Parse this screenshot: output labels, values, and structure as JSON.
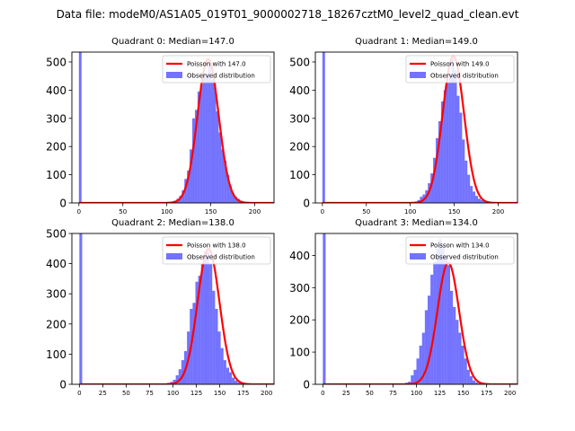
{
  "suptitle": "Data file: modeM0/AS1A05_019T01_9000002718_18267cztM0_level2_quad_clean.evt",
  "colors": {
    "observed": "#0000ff",
    "poisson": "#ff0000",
    "axes": "#000000"
  },
  "chart_data": [
    {
      "type": "bar",
      "title": "Quadrant 0: Median=147.0",
      "xlim": [
        -8,
        222
      ],
      "ylim": [
        0,
        535
      ],
      "xticks": [
        0,
        50,
        100,
        150,
        200
      ],
      "yticks": [
        0,
        100,
        200,
        300,
        400,
        500
      ],
      "bin_width": 3,
      "median": 147,
      "poisson_label": "Poisson with 147.0",
      "hist_label": "Observed distribution",
      "legend_position": "top-right",
      "bins": [
        [
          0,
          540
        ],
        [
          102,
          2
        ],
        [
          105,
          5
        ],
        [
          108,
          8
        ],
        [
          111,
          15
        ],
        [
          114,
          25
        ],
        [
          117,
          45
        ],
        [
          120,
          85
        ],
        [
          123,
          115
        ],
        [
          126,
          190
        ],
        [
          129,
          300
        ],
        [
          132,
          330
        ],
        [
          135,
          395
        ],
        [
          138,
          420
        ],
        [
          141,
          460
        ],
        [
          144,
          455
        ],
        [
          147,
          500
        ],
        [
          150,
          435
        ],
        [
          153,
          425
        ],
        [
          156,
          325
        ],
        [
          159,
          250
        ],
        [
          162,
          190
        ],
        [
          165,
          150
        ],
        [
          168,
          100
        ],
        [
          171,
          60
        ],
        [
          174,
          35
        ],
        [
          177,
          22
        ],
        [
          180,
          15
        ],
        [
          183,
          8
        ],
        [
          186,
          4
        ],
        [
          189,
          2
        ]
      ],
      "poisson_curve_x": [
        0,
        222
      ]
    },
    {
      "type": "bar",
      "title": "Quadrant 1: Median=149.0",
      "xlim": [
        -8,
        222
      ],
      "ylim": [
        0,
        535
      ],
      "xticks": [
        0,
        50,
        100,
        150,
        200
      ],
      "yticks": [
        0,
        100,
        200,
        300,
        400,
        500
      ],
      "bin_width": 3,
      "median": 149,
      "poisson_label": "Poisson with 149.0",
      "hist_label": "Observed distribution",
      "legend_position": "top-right",
      "bins": [
        [
          0,
          540
        ],
        [
          102,
          3
        ],
        [
          105,
          5
        ],
        [
          108,
          10
        ],
        [
          111,
          22
        ],
        [
          114,
          30
        ],
        [
          117,
          45
        ],
        [
          120,
          70
        ],
        [
          123,
          105
        ],
        [
          126,
          160
        ],
        [
          129,
          230
        ],
        [
          132,
          290
        ],
        [
          135,
          360
        ],
        [
          138,
          400
        ],
        [
          141,
          430
        ],
        [
          144,
          460
        ],
        [
          147,
          510
        ],
        [
          150,
          470
        ],
        [
          153,
          380
        ],
        [
          156,
          320
        ],
        [
          159,
          225
        ],
        [
          162,
          150
        ],
        [
          165,
          100
        ],
        [
          168,
          60
        ],
        [
          171,
          40
        ],
        [
          174,
          25
        ],
        [
          177,
          15
        ],
        [
          180,
          10
        ],
        [
          183,
          5
        ],
        [
          186,
          3
        ]
      ],
      "poisson_curve_x": [
        0,
        222
      ]
    },
    {
      "type": "bar",
      "title": "Quadrant 2: Median=138.0",
      "xlim": [
        -8,
        208
      ],
      "ylim": [
        0,
        500
      ],
      "xticks": [
        0,
        25,
        50,
        75,
        100,
        125,
        150,
        175,
        200
      ],
      "yticks": [
        0,
        100,
        200,
        300,
        400,
        500
      ],
      "bin_width": 3,
      "median": 138,
      "poisson_label": "Poisson with 138.0",
      "hist_label": "Observed distribution",
      "legend_position": "top-right",
      "bins": [
        [
          0,
          510
        ],
        [
          88,
          2
        ],
        [
          91,
          3
        ],
        [
          94,
          5
        ],
        [
          97,
          8
        ],
        [
          100,
          15
        ],
        [
          103,
          30
        ],
        [
          106,
          50
        ],
        [
          109,
          80
        ],
        [
          112,
          110
        ],
        [
          115,
          175
        ],
        [
          118,
          250
        ],
        [
          121,
          270
        ],
        [
          124,
          340
        ],
        [
          127,
          360
        ],
        [
          130,
          400
        ],
        [
          133,
          440
        ],
        [
          136,
          440
        ],
        [
          139,
          400
        ],
        [
          142,
          310
        ],
        [
          145,
          250
        ],
        [
          148,
          175
        ],
        [
          151,
          120
        ],
        [
          154,
          80
        ],
        [
          157,
          55
        ],
        [
          160,
          40
        ],
        [
          163,
          22
        ],
        [
          166,
          12
        ],
        [
          169,
          6
        ],
        [
          172,
          3
        ]
      ],
      "poisson_curve_x": [
        0,
        208
      ]
    },
    {
      "type": "bar",
      "title": "Quadrant 3: Median=134.0",
      "xlim": [
        -8,
        208
      ],
      "ylim": [
        0,
        468
      ],
      "xticks": [
        0,
        25,
        50,
        75,
        100,
        125,
        150,
        175,
        200
      ],
      "yticks": [
        0,
        100,
        200,
        300,
        400
      ],
      "bin_width": 3,
      "median": 134,
      "poisson_label": "Poisson with 134.0",
      "hist_label": "Observed distribution",
      "legend_position": "top-right",
      "bins": [
        [
          0,
          470
        ],
        [
          20,
          3
        ],
        [
          40,
          3
        ],
        [
          70,
          2
        ],
        [
          85,
          3
        ],
        [
          88,
          5
        ],
        [
          91,
          8
        ],
        [
          94,
          28
        ],
        [
          97,
          45
        ],
        [
          100,
          80
        ],
        [
          103,
          120
        ],
        [
          106,
          160
        ],
        [
          109,
          230
        ],
        [
          112,
          275
        ],
        [
          115,
          340
        ],
        [
          118,
          380
        ],
        [
          121,
          420
        ],
        [
          124,
          450
        ],
        [
          127,
          430
        ],
        [
          130,
          400
        ],
        [
          133,
          370
        ],
        [
          136,
          290
        ],
        [
          139,
          240
        ],
        [
          142,
          200
        ],
        [
          145,
          160
        ],
        [
          148,
          120
        ],
        [
          151,
          80
        ],
        [
          154,
          45
        ],
        [
          157,
          25
        ],
        [
          160,
          12
        ],
        [
          163,
          6
        ],
        [
          166,
          3
        ]
      ],
      "poisson_curve_x": [
        0,
        208
      ]
    }
  ]
}
